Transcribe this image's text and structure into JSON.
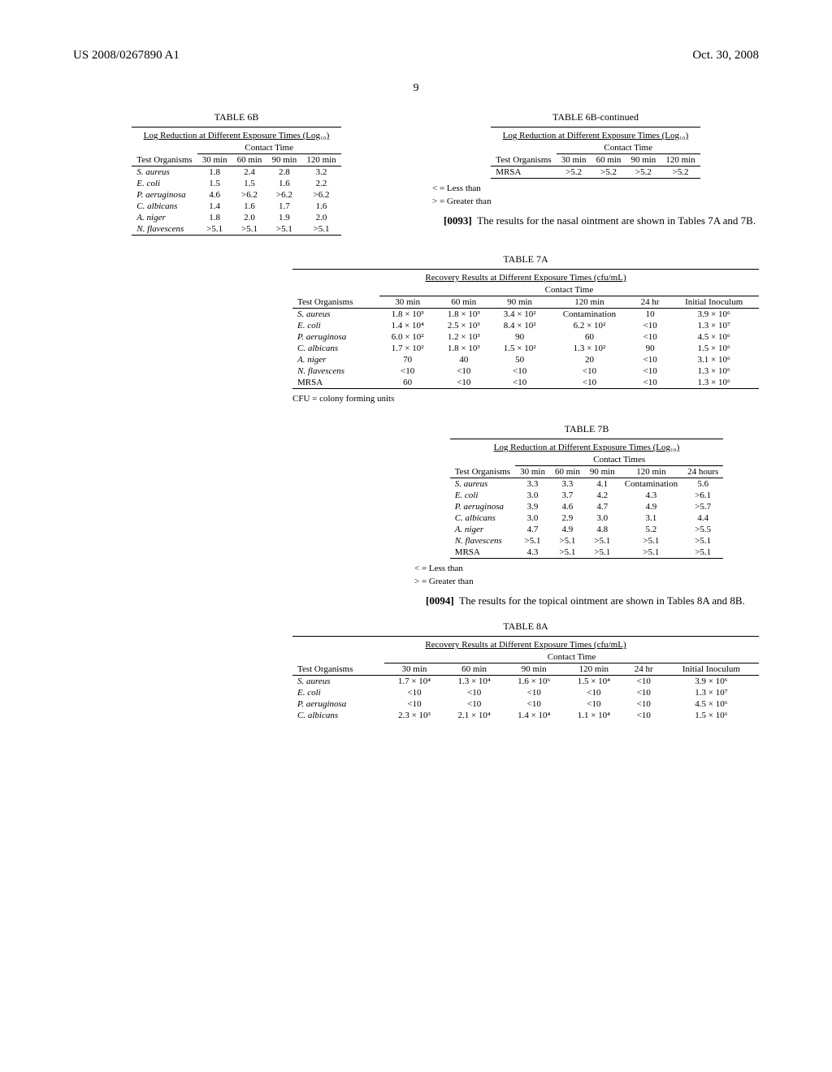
{
  "header": {
    "left": "US 2008/0267890 A1",
    "right": "Oct. 30, 2008"
  },
  "page_number": "9",
  "table6b": {
    "caption": "TABLE 6B",
    "subtitle": "Log Reduction at Different Exposure Times (Log₁₀)",
    "group_header": "Contact Time",
    "col0": "Test Organisms",
    "cols": [
      "30 min",
      "60 min",
      "90 min",
      "120 min"
    ],
    "rows": [
      {
        "org": "S. aureus",
        "v": [
          "1.8",
          "2.4",
          "2.8",
          "3.2"
        ]
      },
      {
        "org": "E. coli",
        "v": [
          "1.5",
          "1.5",
          "1.6",
          "2.2"
        ]
      },
      {
        "org": "P. aeruginosa",
        "v": [
          "4.6",
          ">6.2",
          ">6.2",
          ">6.2"
        ]
      },
      {
        "org": "C. albicans",
        "v": [
          "1.4",
          "1.6",
          "1.7",
          "1.6"
        ]
      },
      {
        "org": "A. niger",
        "v": [
          "1.8",
          "2.0",
          "1.9",
          "2.0"
        ]
      },
      {
        "org": "N. flavescens",
        "v": [
          ">5.1",
          ">5.1",
          ">5.1",
          ">5.1"
        ]
      }
    ]
  },
  "table6b_cont": {
    "caption": "TABLE 6B-continued",
    "subtitle": "Log Reduction at Different Exposure Times (Log₁₀)",
    "group_header": "Contact Time",
    "col0": "Test Organisms",
    "cols": [
      "30 min",
      "60 min",
      "90 min",
      "120 min"
    ],
    "rows": [
      {
        "org": "MRSA",
        "v": [
          ">5.2",
          ">5.2",
          ">5.2",
          ">5.2"
        ]
      }
    ],
    "footnote1": "< = Less than",
    "footnote2": "> = Greater than"
  },
  "para93": {
    "num": "[0093]",
    "text": "The results for the nasal ointment are shown in Tables 7A and 7B."
  },
  "table7a": {
    "caption": "TABLE 7A",
    "subtitle": "Recovery Results at Different Exposure Times (cfu/mL)",
    "group_header": "Contact Time",
    "col0": "Test Organisms",
    "cols": [
      "30 min",
      "60 min",
      "90 min",
      "120 min",
      "24 hr",
      "Initial Inoculum"
    ],
    "rows": [
      {
        "org": "S. aureus",
        "v": [
          "1.8 × 10³",
          "1.8 × 10³",
          "3.4 × 10²",
          "Contamination",
          "10",
          "3.9 × 10⁶"
        ]
      },
      {
        "org": "E. coli",
        "v": [
          "1.4 × 10⁴",
          "2.5 × 10³",
          "8.4 × 10²",
          "6.2 × 10²",
          "<10",
          "1.3 × 10⁷"
        ]
      },
      {
        "org": "P. aeruginosa",
        "v": [
          "6.0 × 10²",
          "1.2 × 10³",
          "90",
          "60",
          "<10",
          "4.5 × 10⁶"
        ]
      },
      {
        "org": "C. albicans",
        "v": [
          "1.7 × 10²",
          "1.8 × 10³",
          "1.5 × 10²",
          "1.3 × 10²",
          "90",
          "1.5 × 10⁶"
        ]
      },
      {
        "org": "A. niger",
        "v": [
          "70",
          "40",
          "50",
          "20",
          "<10",
          "3.1 × 10⁶"
        ]
      },
      {
        "org": "N. flavescens",
        "v": [
          "<10",
          "<10",
          "<10",
          "<10",
          "<10",
          "1.3 × 10⁶"
        ]
      },
      {
        "org": "MRSA",
        "v": [
          "60",
          "<10",
          "<10",
          "<10",
          "<10",
          "1.3 × 10⁶"
        ]
      }
    ],
    "footnote": "CFU = colony forming units"
  },
  "table7b": {
    "caption": "TABLE 7B",
    "subtitle": "Log Reduction at Different Exposure Times (Log₁₀)",
    "group_header": "Contact Times",
    "col0": "Test Organisms",
    "cols": [
      "30 min",
      "60 min",
      "90 min",
      "120 min",
      "24 hours"
    ],
    "rows": [
      {
        "org": "S. aureus",
        "v": [
          "3.3",
          "3.3",
          "4.1",
          "Contamination",
          "5.6"
        ]
      },
      {
        "org": "E. coli",
        "v": [
          "3.0",
          "3.7",
          "4.2",
          "4.3",
          ">6.1"
        ]
      },
      {
        "org": "P. aeruginosa",
        "v": [
          "3.9",
          "4.6",
          "4.7",
          "4.9",
          ">5.7"
        ]
      },
      {
        "org": "C. albicans",
        "v": [
          "3.0",
          "2.9",
          "3.0",
          "3.1",
          "4.4"
        ]
      },
      {
        "org": "A. niger",
        "v": [
          "4.7",
          "4.9",
          "4.8",
          "5.2",
          ">5.5"
        ]
      },
      {
        "org": "N. flavescens",
        "v": [
          ">5.1",
          ">5.1",
          ">5.1",
          ">5.1",
          ">5.1"
        ]
      },
      {
        "org": "MRSA",
        "v": [
          "4.3",
          ">5.1",
          ">5.1",
          ">5.1",
          ">5.1"
        ]
      }
    ],
    "footnote1": "< = Less than",
    "footnote2": "> = Greater than"
  },
  "para94": {
    "num": "[0094]",
    "text": "The results for the topical ointment are shown in Tables 8A and 8B."
  },
  "table8a": {
    "caption": "TABLE 8A",
    "subtitle": "Recovery Results at Different Exposure Times (cfu/mL)",
    "group_header": "Contact Time",
    "col0": "Test Organisms",
    "cols": [
      "30 min",
      "60 min",
      "90 min",
      "120 min",
      "24 hr",
      "Initial Inoculum"
    ],
    "rows": [
      {
        "org": "S. aureus",
        "v": [
          "1.7 × 10⁴",
          "1.3 × 10⁴",
          "1.6 × 10⁶",
          "1.5 × 10⁴",
          "<10",
          "3.9 × 10⁶"
        ]
      },
      {
        "org": "E. coli",
        "v": [
          "<10",
          "<10",
          "<10",
          "<10",
          "<10",
          "1.3 × 10⁷"
        ]
      },
      {
        "org": "P. aeruginosa",
        "v": [
          "<10",
          "<10",
          "<10",
          "<10",
          "<10",
          "4.5 × 10⁶"
        ]
      },
      {
        "org": "C. albicans",
        "v": [
          "2.3 × 10³",
          "2.1 × 10⁴",
          "1.4 × 10⁴",
          "1.1 × 10⁴",
          "<10",
          "1.5 × 10⁶"
        ]
      }
    ]
  }
}
